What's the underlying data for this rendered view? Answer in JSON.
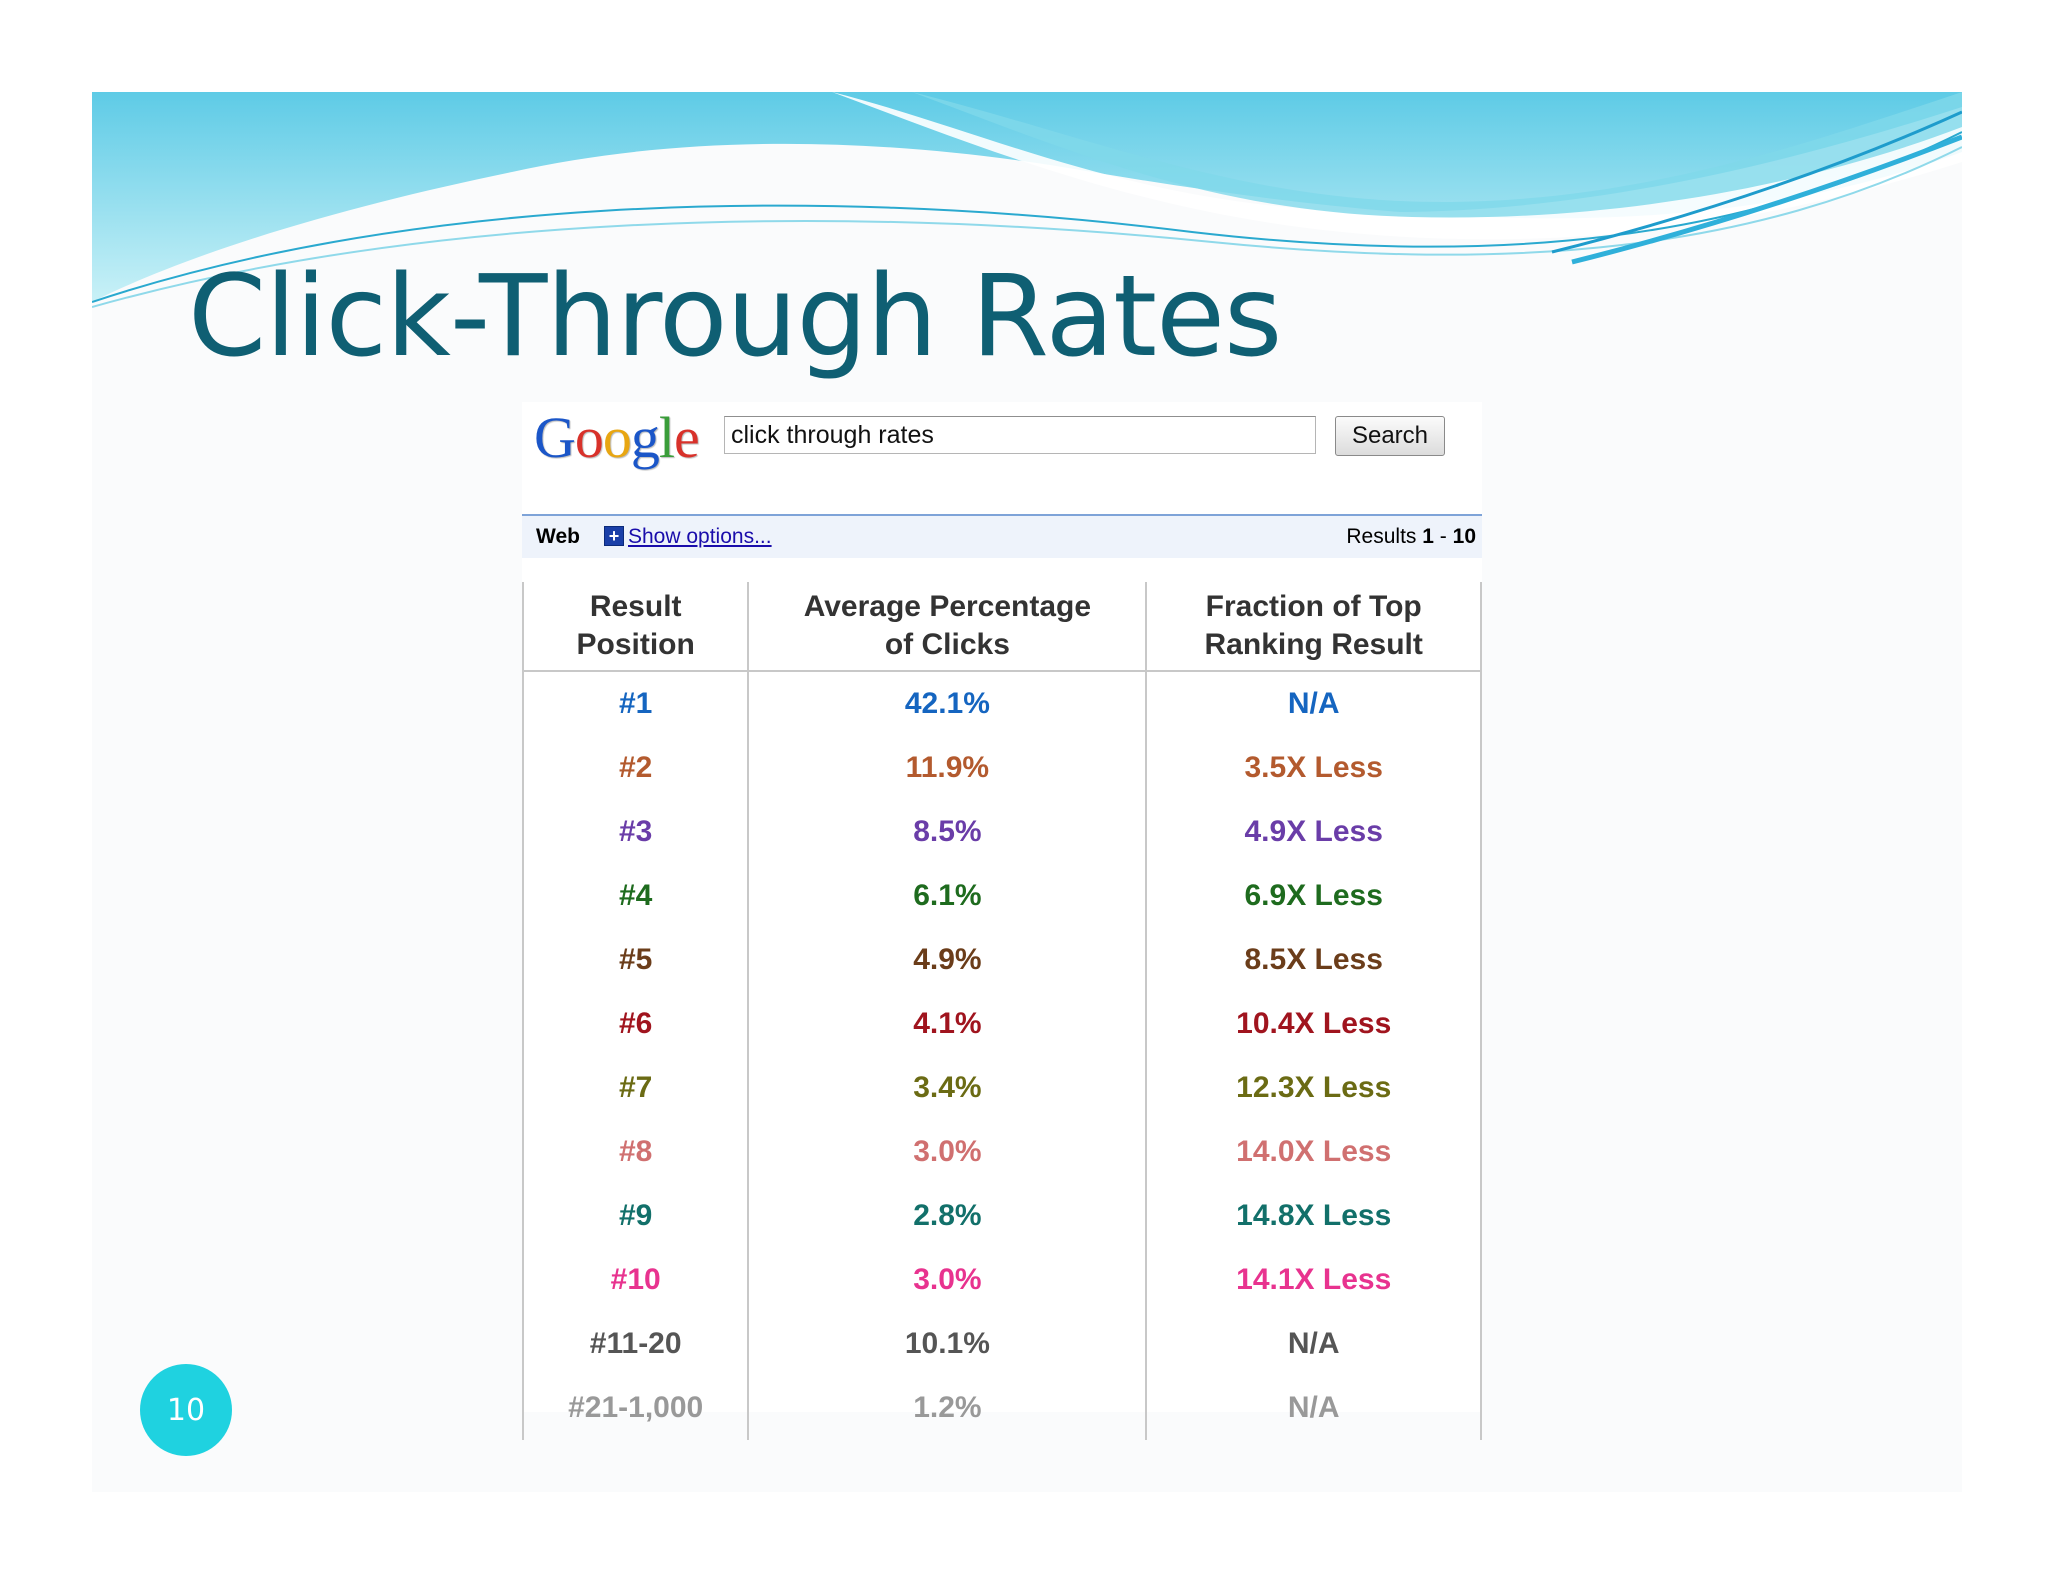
{
  "slide": {
    "title": "Click-Through Rates",
    "page_number": "10"
  },
  "google": {
    "logo_letters": [
      "G",
      "o",
      "o",
      "g",
      "l",
      "e"
    ],
    "query": "click through rates",
    "search_button": "Search",
    "tab_web": "Web",
    "show_options": "Show options...",
    "results_label": "Results",
    "results_from": "1",
    "results_sep": "-",
    "results_to": "10"
  },
  "table": {
    "headers": [
      [
        "Result",
        "Position"
      ],
      [
        "Average Percentage",
        "of Clicks"
      ],
      [
        "Fraction of Top",
        "Ranking Result"
      ]
    ],
    "rows": [
      {
        "position": "#1",
        "percent": "42.1%",
        "fraction": "N/A",
        "color": "#1565c0"
      },
      {
        "position": "#2",
        "percent": "11.9%",
        "fraction": "3.5X Less",
        "color": "#b35a2e"
      },
      {
        "position": "#3",
        "percent": "8.5%",
        "fraction": "4.9X Less",
        "color": "#6a3da8"
      },
      {
        "position": "#4",
        "percent": "6.1%",
        "fraction": "6.9X Less",
        "color": "#1e6b1e"
      },
      {
        "position": "#5",
        "percent": "4.9%",
        "fraction": "8.5X Less",
        "color": "#6b3d1a"
      },
      {
        "position": "#6",
        "percent": "4.1%",
        "fraction": "10.4X Less",
        "color": "#a0141e"
      },
      {
        "position": "#7",
        "percent": "3.4%",
        "fraction": "12.3X Less",
        "color": "#6b6b14"
      },
      {
        "position": "#8",
        "percent": "3.0%",
        "fraction": "14.0X Less",
        "color": "#d07070"
      },
      {
        "position": "#9",
        "percent": "2.8%",
        "fraction": "14.8X Less",
        "color": "#12706a"
      },
      {
        "position": "#10",
        "percent": "3.0%",
        "fraction": "14.1X Less",
        "color": "#e8338f"
      },
      {
        "position": "#11-20",
        "percent": "10.1%",
        "fraction": "N/A",
        "color": "#555555"
      },
      {
        "position": "#21-1,000",
        "percent": "1.2%",
        "fraction": "N/A",
        "color": "#999999"
      }
    ]
  },
  "colors": {
    "title": "#0f5f73",
    "page_badge": "#1fd2e0",
    "wave_light": "#b8ecf3",
    "wave_mid": "#6fd3e8",
    "wave_dark": "#35b7db"
  }
}
